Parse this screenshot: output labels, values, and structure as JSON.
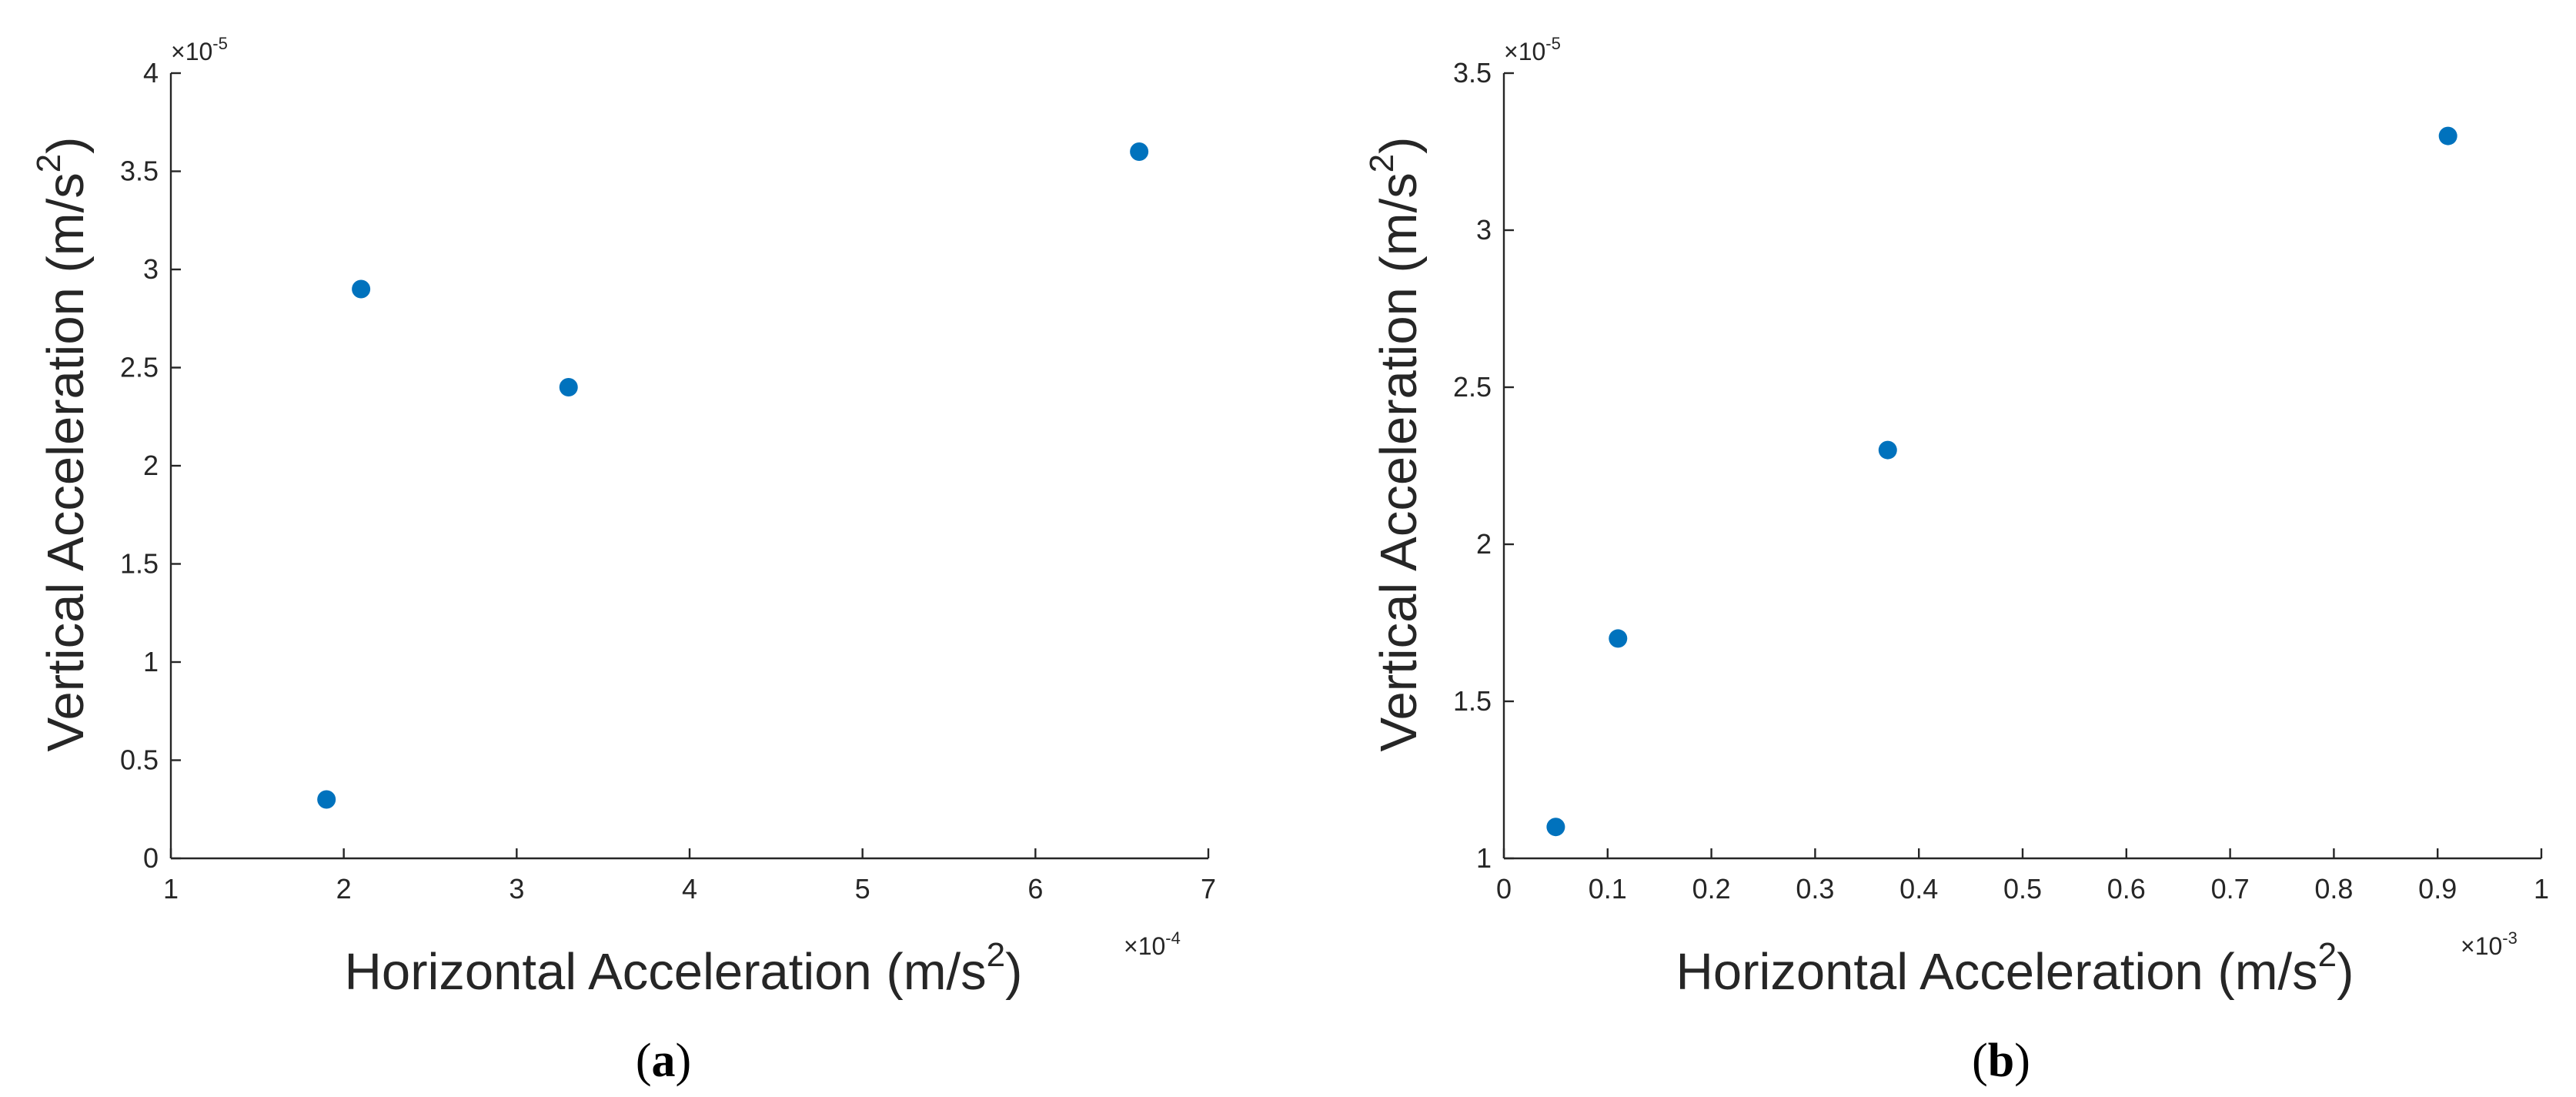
{
  "colors": {
    "marker": "#0072BD",
    "axis": "#262626"
  },
  "chart_data": [
    {
      "type": "scatter",
      "panel_label": {
        "open": "(",
        "letter": "a",
        "close": ")"
      },
      "xlabel": {
        "text": "Horizontal Acceleration (m/s",
        "sup": "2",
        "close": ")"
      },
      "ylabel": {
        "text": "Vertical Acceleration (m/s",
        "sup": "2",
        "close": ")"
      },
      "x_multiplier": {
        "base": "×10",
        "exp": "-4"
      },
      "y_multiplier": {
        "base": "×10",
        "exp": "-5"
      },
      "xlim": [
        1,
        7
      ],
      "ylim": [
        0,
        4
      ],
      "xticks": [
        1,
        2,
        3,
        4,
        5,
        6,
        7
      ],
      "xtick_labels": [
        "1",
        "2",
        "3",
        "4",
        "5",
        "6",
        "7"
      ],
      "yticks": [
        0,
        0.5,
        1,
        1.5,
        2,
        2.5,
        3,
        3.5,
        4
      ],
      "ytick_labels": [
        "0",
        "0.5",
        "1",
        "1.5",
        "2",
        "2.5",
        "3",
        "3.5",
        "4"
      ],
      "x_scale": "1e-4",
      "y_scale": "1e-5",
      "points": [
        {
          "x": 1.9,
          "y": 0.3
        },
        {
          "x": 2.1,
          "y": 2.9
        },
        {
          "x": 3.3,
          "y": 2.4
        },
        {
          "x": 6.6,
          "y": 3.6
        }
      ]
    },
    {
      "type": "scatter",
      "panel_label": {
        "open": "(",
        "letter": "b",
        "close": ")"
      },
      "xlabel": {
        "text": "Horizontal Acceleration (m/s",
        "sup": "2",
        "close": ")"
      },
      "ylabel": {
        "text": "Vertical Acceleration (m/s",
        "sup": "2",
        "close": ")"
      },
      "x_multiplier": {
        "base": "×10",
        "exp": "-3"
      },
      "y_multiplier": {
        "base": "×10",
        "exp": "-5"
      },
      "xlim": [
        0,
        1
      ],
      "ylim": [
        1,
        3.5
      ],
      "xticks": [
        0,
        0.1,
        0.2,
        0.3,
        0.4,
        0.5,
        0.6,
        0.7,
        0.8,
        0.9,
        1
      ],
      "xtick_labels": [
        "0",
        "0.1",
        "0.2",
        "0.3",
        "0.4",
        "0.5",
        "0.6",
        "0.7",
        "0.8",
        "0.9",
        "1"
      ],
      "yticks": [
        1,
        1.5,
        2,
        2.5,
        3,
        3.5
      ],
      "ytick_labels": [
        "1",
        "1.5",
        "2",
        "2.5",
        "3",
        "3.5"
      ],
      "x_scale": "1e-3",
      "y_scale": "1e-5",
      "points": [
        {
          "x": 0.05,
          "y": 1.1
        },
        {
          "x": 0.11,
          "y": 1.7
        },
        {
          "x": 0.37,
          "y": 2.3
        },
        {
          "x": 0.91,
          "y": 3.3
        }
      ]
    }
  ]
}
